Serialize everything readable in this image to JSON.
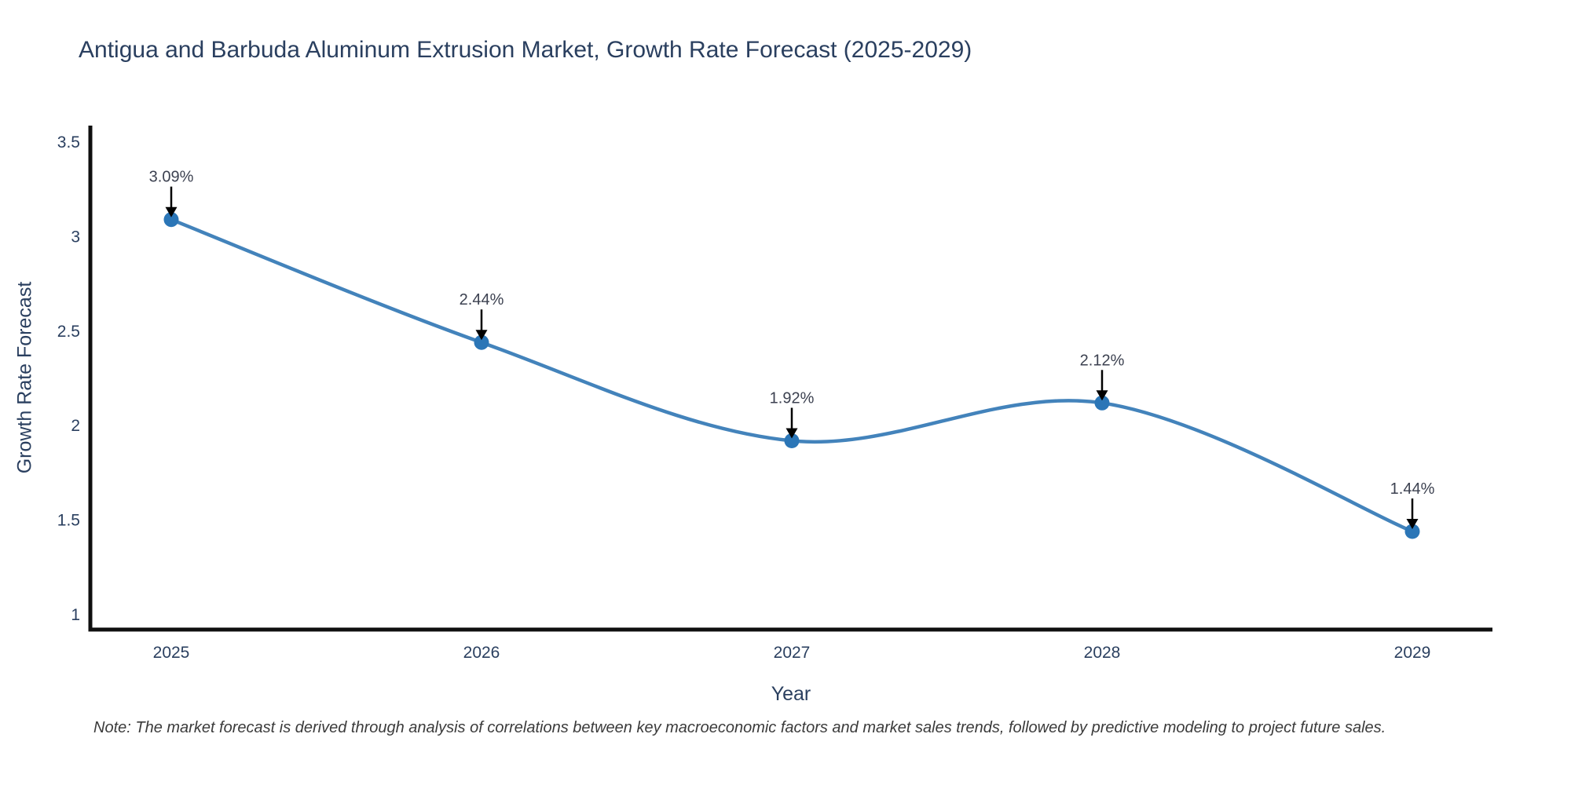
{
  "title": "Antigua and Barbuda Aluminum Extrusion Market, Growth Rate Forecast (2025-2029)",
  "note": "Note: The market forecast is derived through analysis of correlations between key macroeconomic factors and market sales trends, followed by predictive modeling to project future sales.",
  "chart_data": {
    "type": "line",
    "title": "Antigua and Barbuda Aluminum Extrusion Market, Growth Rate Forecast (2025-2029)",
    "x": [
      2025,
      2026,
      2027,
      2028,
      2029
    ],
    "x_ticks": [
      "2025",
      "2026",
      "2027",
      "2028",
      "2029"
    ],
    "values": [
      3.09,
      2.44,
      1.92,
      2.12,
      1.44
    ],
    "point_labels": [
      "3.09%",
      "2.44%",
      "1.92%",
      "2.12%",
      "1.44%"
    ],
    "xlabel": "Year",
    "ylabel": "Growth Rate Forecast",
    "y_ticks": [
      1,
      1.5,
      2,
      2.5,
      3,
      3.5
    ],
    "ylim": [
      1,
      3.5
    ],
    "line_shape": "spline",
    "grid": false,
    "legend_position": "none",
    "line_color": "#4383bb",
    "marker_color": "#2b76b7",
    "axis_color": "#0f0f0f",
    "annotation_arrow_color": "#000000"
  }
}
